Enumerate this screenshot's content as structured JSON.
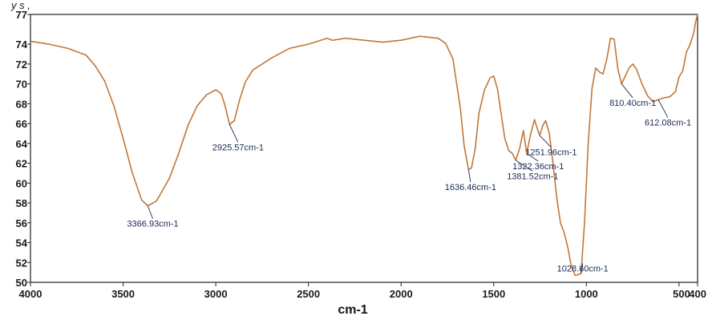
{
  "top_text": "y s ,",
  "chart_data": {
    "type": "line",
    "title": "",
    "xlabel": "cm-1",
    "ylabel": "",
    "xlim": [
      4000,
      400
    ],
    "ylim": [
      50,
      77
    ],
    "x_reversed": true,
    "grid": false,
    "x_ticks": [
      {
        "value": 4000,
        "label": "4000"
      },
      {
        "value": 3500,
        "label": "3500"
      },
      {
        "value": 3000,
        "label": "3000"
      },
      {
        "value": 2500,
        "label": "2500"
      },
      {
        "value": 2000,
        "label": "2000"
      },
      {
        "value": 1500,
        "label": "1500"
      },
      {
        "value": 1000,
        "label": "1000"
      },
      {
        "value": 500,
        "label": "500"
      },
      {
        "value": 400,
        "label": "400"
      }
    ],
    "y_ticks": [
      {
        "value": 50,
        "label": "50"
      },
      {
        "value": 52,
        "label": "52"
      },
      {
        "value": 54,
        "label": "54"
      },
      {
        "value": 56,
        "label": "56"
      },
      {
        "value": 58,
        "label": "58"
      },
      {
        "value": 60,
        "label": "60"
      },
      {
        "value": 62,
        "label": "62"
      },
      {
        "value": 64,
        "label": "64"
      },
      {
        "value": 66,
        "label": "66"
      },
      {
        "value": 68,
        "label": "68"
      },
      {
        "value": 70,
        "label": "70"
      },
      {
        "value": 72,
        "label": "72"
      },
      {
        "value": 74,
        "label": "74"
      },
      {
        "value": 77,
        "label": "77"
      }
    ],
    "series": [
      {
        "color": "#c0783a",
        "points": [
          [
            4000,
            74.3
          ],
          [
            3900,
            74.0
          ],
          [
            3800,
            73.6
          ],
          [
            3700,
            72.9
          ],
          [
            3650,
            71.8
          ],
          [
            3600,
            70.3
          ],
          [
            3550,
            67.8
          ],
          [
            3500,
            64.5
          ],
          [
            3450,
            61.0
          ],
          [
            3400,
            58.3
          ],
          [
            3366.93,
            57.7
          ],
          [
            3320,
            58.2
          ],
          [
            3250,
            60.5
          ],
          [
            3200,
            63.0
          ],
          [
            3150,
            65.8
          ],
          [
            3100,
            67.8
          ],
          [
            3050,
            68.9
          ],
          [
            3000,
            69.4
          ],
          [
            2970,
            69.0
          ],
          [
            2950,
            67.8
          ],
          [
            2925.57,
            65.9
          ],
          [
            2900,
            66.3
          ],
          [
            2870,
            68.5
          ],
          [
            2840,
            70.2
          ],
          [
            2800,
            71.4
          ],
          [
            2700,
            72.6
          ],
          [
            2600,
            73.6
          ],
          [
            2500,
            74.0
          ],
          [
            2400,
            74.6
          ],
          [
            2370,
            74.4
          ],
          [
            2300,
            74.6
          ],
          [
            2200,
            74.4
          ],
          [
            2100,
            74.2
          ],
          [
            2000,
            74.4
          ],
          [
            1900,
            74.8
          ],
          [
            1800,
            74.6
          ],
          [
            1760,
            74.1
          ],
          [
            1720,
            72.5
          ],
          [
            1700,
            70.0
          ],
          [
            1680,
            67.5
          ],
          [
            1660,
            63.8
          ],
          [
            1636.46,
            61.4
          ],
          [
            1620,
            61.5
          ],
          [
            1600,
            63.5
          ],
          [
            1580,
            67.0
          ],
          [
            1550,
            69.4
          ],
          [
            1520,
            70.6
          ],
          [
            1500,
            70.8
          ],
          [
            1480,
            69.5
          ],
          [
            1460,
            67.0
          ],
          [
            1440,
            64.5
          ],
          [
            1420,
            63.3
          ],
          [
            1400,
            63.0
          ],
          [
            1381.52,
            62.3
          ],
          [
            1360,
            63.5
          ],
          [
            1340,
            65.3
          ],
          [
            1322.36,
            63.0
          ],
          [
            1300,
            65.0
          ],
          [
            1280,
            66.4
          ],
          [
            1265,
            65.5
          ],
          [
            1251.96,
            64.8
          ],
          [
            1235,
            65.8
          ],
          [
            1220,
            66.3
          ],
          [
            1200,
            65.0
          ],
          [
            1180,
            62.0
          ],
          [
            1160,
            58.5
          ],
          [
            1140,
            56.0
          ],
          [
            1120,
            55.0
          ],
          [
            1100,
            53.5
          ],
          [
            1080,
            51.5
          ],
          [
            1060,
            50.7
          ],
          [
            1040,
            50.8
          ],
          [
            1028.6,
            50.9
          ],
          [
            1010,
            56.0
          ],
          [
            990,
            64.0
          ],
          [
            970,
            69.5
          ],
          [
            950,
            71.6
          ],
          [
            930,
            71.2
          ],
          [
            910,
            71.0
          ],
          [
            890,
            72.5
          ],
          [
            870,
            74.6
          ],
          [
            850,
            74.5
          ],
          [
            830,
            71.5
          ],
          [
            810.4,
            70.0
          ],
          [
            790,
            70.8
          ],
          [
            770,
            71.6
          ],
          [
            750,
            72.0
          ],
          [
            730,
            71.5
          ],
          [
            700,
            70.0
          ],
          [
            670,
            68.8
          ],
          [
            640,
            68.2
          ],
          [
            612.08,
            68.4
          ],
          [
            580,
            68.6
          ],
          [
            550,
            68.7
          ],
          [
            520,
            69.2
          ],
          [
            500,
            70.7
          ],
          [
            480,
            71.3
          ],
          [
            460,
            73.2
          ],
          [
            440,
            74.0
          ],
          [
            420,
            75.2
          ],
          [
            410,
            76.3
          ],
          [
            400,
            77.0
          ]
        ]
      }
    ],
    "annotations": [
      {
        "x": 3366.93,
        "y": 57.7,
        "label": "3366.93cm-1",
        "lx": 3340,
        "ly": 55.6
      },
      {
        "x": 2925.57,
        "y": 65.9,
        "label": "2925.57cm-1",
        "lx": 2880,
        "ly": 63.3
      },
      {
        "x": 1636.46,
        "y": 61.4,
        "label": "1636.46cm-1",
        "lx": 1625,
        "ly": 59.3
      },
      {
        "x": 1381.52,
        "y": 62.3,
        "label": "1381.52cm-1",
        "lx": 1290,
        "ly": 60.4
      },
      {
        "x": 1322.36,
        "y": 63.0,
        "label": "1322.36cm-1",
        "lx": 1260,
        "ly": 61.4
      },
      {
        "x": 1251.96,
        "y": 64.8,
        "label": "1251.96cm-1",
        "lx": 1190,
        "ly": 62.8
      },
      {
        "x": 1028.6,
        "y": 50.9,
        "label": "1028.60cm-1",
        "lx": 1020,
        "ly": 51.1
      },
      {
        "x": 810.4,
        "y": 70.0,
        "label": "810.40cm-1",
        "lx": 750,
        "ly": 67.8
      },
      {
        "x": 612.08,
        "y": 68.4,
        "label": "612.08cm-1",
        "lx": 560,
        "ly": 65.8
      }
    ]
  }
}
